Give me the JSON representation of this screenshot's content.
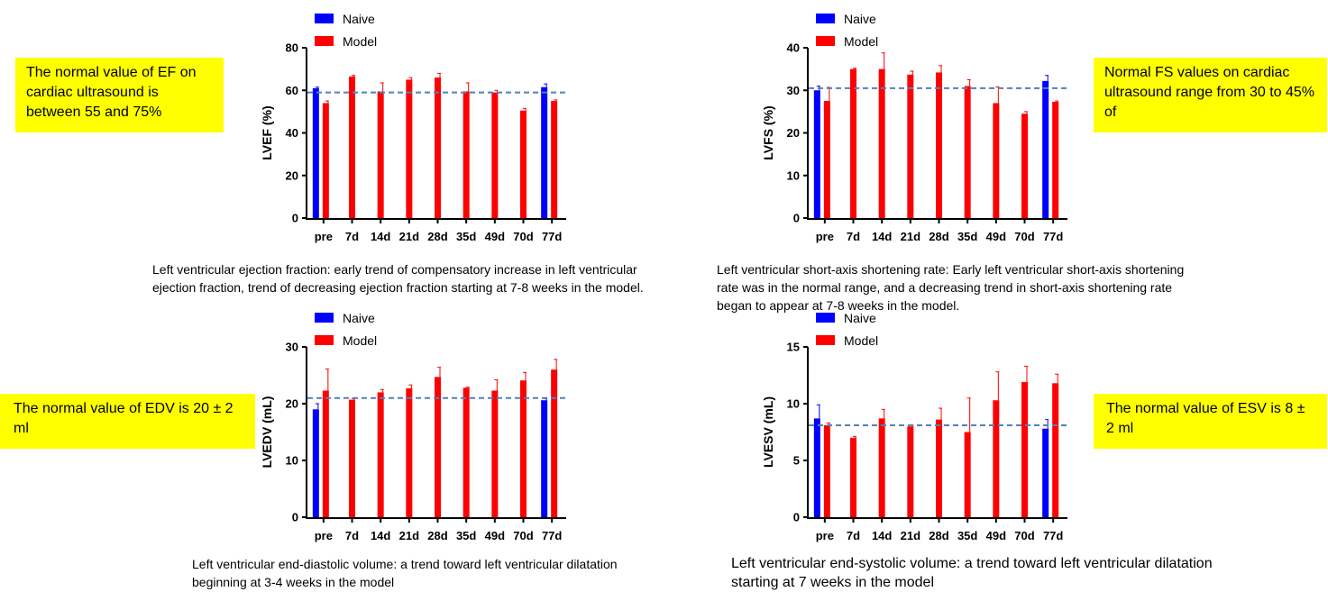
{
  "notes": {
    "ef": "The normal value of EF on cardiac ultrasound is between 55 and 75%",
    "fs": "Normal FS values on cardiac ultrasound range from 30 to 45% of",
    "edv": "The normal value of EDV is 20 ± 2 ml",
    "esv": "The normal value of ESV is 8 ± 2 ml"
  },
  "captions": {
    "ef": "Left ventricular ejection fraction: early trend of compensatory increase in left ventricular ejection fraction, trend of decreasing ejection fraction starting at 7-8 weeks in the model.",
    "fs": "Left ventricular short-axis shortening rate: Early left ventricular short-axis shortening rate was in the normal range, and a decreasing trend in short-axis shortening rate began to appear at 7-8 weeks in the model.",
    "edv": "Left ventricular end-diastolic volume: a trend toward left ventricular dilatation beginning at 3-4 weeks in the model",
    "esv": "Left ventricular end-systolic volume: a trend toward left ventricular dilatation starting at 7 weeks in the model"
  },
  "colors": {
    "naive": "#0000ff",
    "model": "#ff0000",
    "reference": "#4f81bd",
    "highlight": "#ffff00"
  },
  "chart_data": [
    {
      "type": "bar",
      "ylabel": "LVEF (%)",
      "ylim": [
        0,
        80
      ],
      "yticks": [
        0,
        20,
        40,
        60,
        80
      ],
      "categories": [
        "pre",
        "7d",
        "14d",
        "21d",
        "28d",
        "35d",
        "49d",
        "70d",
        "77d"
      ],
      "reference_line": 59,
      "legend": [
        "Naive",
        "Model"
      ],
      "series": [
        {
          "name": "Naive",
          "values": [
            61,
            null,
            null,
            null,
            null,
            null,
            null,
            null,
            61.5
          ],
          "errors": [
            0.5,
            null,
            null,
            null,
            null,
            null,
            null,
            null,
            1.5
          ]
        },
        {
          "name": "Model",
          "values": [
            54,
            66.5,
            59.5,
            65,
            66,
            59.5,
            59,
            50.5,
            55
          ],
          "errors": [
            1,
            0.5,
            4,
            1,
            2,
            4,
            1,
            1,
            0.5
          ]
        }
      ]
    },
    {
      "type": "bar",
      "ylabel": "LVFS (%)",
      "ylim": [
        0,
        40
      ],
      "yticks": [
        0,
        10,
        20,
        30,
        40
      ],
      "categories": [
        "pre",
        "7d",
        "14d",
        "21d",
        "28d",
        "35d",
        "49d",
        "70d",
        "77d"
      ],
      "reference_line": 30.5,
      "legend": [
        "Naive",
        "Model"
      ],
      "series": [
        {
          "name": "Naive",
          "values": [
            30,
            null,
            null,
            null,
            null,
            null,
            null,
            null,
            32.2
          ],
          "errors": [
            1,
            null,
            null,
            null,
            null,
            null,
            null,
            null,
            1.3
          ]
        },
        {
          "name": "Model",
          "values": [
            27.5,
            35,
            35,
            33.7,
            34.2,
            31,
            27,
            24.5,
            27.3
          ],
          "errors": [
            3.2,
            0.2,
            3.8,
            0.8,
            1.6,
            1.5,
            3.8,
            0.5,
            0.2
          ]
        }
      ]
    },
    {
      "type": "bar",
      "ylabel": "LVEDV (mL)",
      "ylim": [
        0,
        30
      ],
      "yticks": [
        0,
        10,
        20,
        30
      ],
      "categories": [
        "pre",
        "7d",
        "14d",
        "21d",
        "28d",
        "35d",
        "49d",
        "70d",
        "77d"
      ],
      "reference_line": 21,
      "legend": [
        "Naive",
        "Model"
      ],
      "series": [
        {
          "name": "Naive",
          "values": [
            19,
            null,
            null,
            null,
            null,
            null,
            null,
            null,
            20.6
          ],
          "errors": [
            1,
            null,
            null,
            null,
            null,
            null,
            null,
            null,
            0.3
          ]
        },
        {
          "name": "Model",
          "values": [
            22.3,
            20.7,
            22,
            22.7,
            24.7,
            22.8,
            22.3,
            24.1,
            26
          ],
          "errors": [
            3.8,
            0.2,
            0.5,
            0.6,
            1.7,
            0.1,
            1.9,
            1.4,
            1.8
          ]
        }
      ]
    },
    {
      "type": "bar",
      "ylabel": "LVESV (mL)",
      "ylim": [
        0,
        15
      ],
      "yticks": [
        0,
        5,
        10,
        15
      ],
      "categories": [
        "pre",
        "7d",
        "14d",
        "21d",
        "28d",
        "35d",
        "49d",
        "70d",
        "77d"
      ],
      "reference_line": 8.1,
      "legend": [
        "Naive",
        "Model"
      ],
      "series": [
        {
          "name": "Naive",
          "values": [
            8.7,
            null,
            null,
            null,
            null,
            null,
            null,
            null,
            7.8
          ],
          "errors": [
            1.2,
            null,
            null,
            null,
            null,
            null,
            null,
            null,
            0.8
          ]
        },
        {
          "name": "Model",
          "values": [
            8.1,
            7,
            8.7,
            8,
            8.6,
            7.5,
            10.3,
            11.9,
            11.8
          ],
          "errors": [
            0.2,
            0.1,
            0.8,
            0.1,
            1,
            3,
            2.5,
            1.4,
            0.8
          ]
        }
      ]
    }
  ]
}
